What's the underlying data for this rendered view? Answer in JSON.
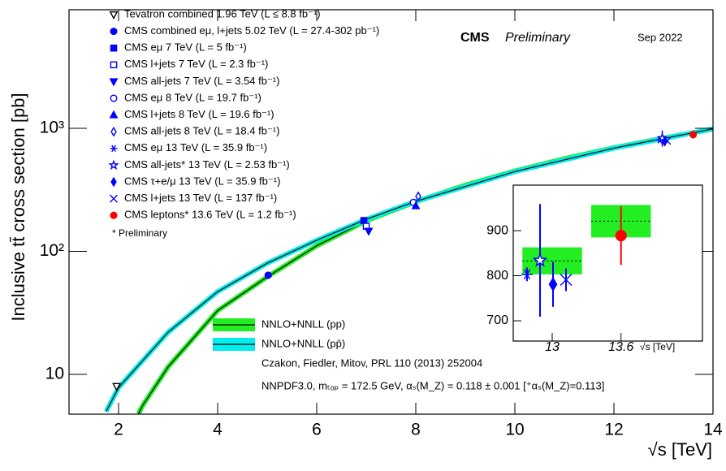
{
  "chart_data": {
    "type": "scatter",
    "experiment": "CMS",
    "status": "Preliminary",
    "date": "Sep 2022",
    "note": "* Preliminary",
    "reference": "Czakon, Fiedler, Mitov, PRL 110 (2013) 252004",
    "settings": "NNPDF3.0, mₜₒₚ = 172.5 GeV, αₛ(M_Z) = 0.118 ± 0.001 [⁺αₛ(M_Z)=0.113]",
    "x_label": "√s [TeV]",
    "y_label": "Inclusive tt̄ cross section [pb]",
    "xlim": [
      1,
      14
    ],
    "xticks": [
      2,
      4,
      6,
      8,
      10,
      12,
      14
    ],
    "ylim": [
      4.75,
      9200
    ],
    "yticks": [
      10,
      {
        "value": 100,
        "label": "10²"
      },
      {
        "value": 1000,
        "label": "10³"
      }
    ],
    "log_y": true,
    "series": [
      {
        "name": "Tevatron combined 1.96 TeV (L ≤ 8.8 fb⁻¹)",
        "color": "#000000",
        "marker": "triangle-down-open",
        "x": [
          1.96
        ],
        "values": [
          8
        ]
      },
      {
        "name": "CMS combined eμ, l+jets 5.02 TeV (L = 27.4-302 pb⁻¹)",
        "color": "#0000ff",
        "marker": "circle",
        "x": [
          5.02
        ],
        "values": [
          64
        ]
      },
      {
        "name": "CMS eμ 7 TeV (L = 5 fb⁻¹)",
        "color": "#0000ff",
        "marker": "square",
        "x": [
          7
        ],
        "values": [
          178
        ]
      },
      {
        "name": "CMS l+jets 7 TeV (L = 2.3 fb⁻¹)",
        "color": "#0000ff",
        "marker": "square-open",
        "x": [
          7
        ],
        "values": [
          160
        ]
      },
      {
        "name": "CMS all-jets 7 TeV (L = 3.54 fb⁻¹)",
        "color": "#0000ff",
        "marker": "triangle-down",
        "x": [
          7
        ],
        "values": [
          146
        ]
      },
      {
        "name": "CMS eμ 8 TeV (L = 19.7 fb⁻¹)",
        "color": "#0000ff",
        "marker": "circle-open",
        "x": [
          8
        ],
        "values": [
          250
        ]
      },
      {
        "name": "CMS l+jets 8 TeV (L = 19.6 fb⁻¹)",
        "color": "#0000ff",
        "marker": "triangle-up",
        "x": [
          8
        ],
        "values": [
          234
        ]
      },
      {
        "name": "CMS all-jets 8 TeV (L = 18.4 fb⁻¹)",
        "color": "#0000ff",
        "marker": "diamond-open",
        "x": [
          8
        ],
        "values": [
          280
        ]
      },
      {
        "name": "CMS eμ 13 TeV (L = 35.9 fb⁻¹)",
        "color": "#0000ff",
        "marker": "asterisk",
        "x": [
          13
        ],
        "values": [
          803
        ],
        "errors": [
          15
        ]
      },
      {
        "name": "CMS all-jets* 13 TeV (L = 2.53 fb⁻¹)",
        "color": "#0000ff",
        "marker": "star-open",
        "x": [
          13
        ],
        "values": [
          834
        ],
        "errors": [
          125
        ]
      },
      {
        "name": "CMS τ+e/μ 13 TeV (L = 35.9 fb⁻¹)",
        "color": "#0000ff",
        "marker": "diamond",
        "x": [
          13
        ],
        "values": [
          781
        ],
        "errors": [
          50
        ]
      },
      {
        "name": "CMS l+jets 13 TeV (L = 137 fb⁻¹)",
        "color": "#0000ff",
        "marker": "cross",
        "x": [
          13
        ],
        "values": [
          791
        ],
        "errors": [
          25
        ]
      },
      {
        "name": "CMS leptons* 13.6 TeV (L = 1.2 fb⁻¹)",
        "color": "#ff0000",
        "marker": "circle",
        "x": [
          13.6
        ],
        "values": [
          889
        ],
        "errors": [
          65
        ]
      }
    ],
    "theory": [
      {
        "name": "NNLO+NNLL (pp)",
        "color": "#22ee22",
        "x": [
          2.4,
          2.5,
          3,
          4,
          5,
          6,
          7,
          8,
          9,
          10,
          11,
          12,
          13,
          13.6,
          14
        ],
        "values": [
          4.8,
          5.7,
          11.5,
          33,
          62,
          111,
          177,
          253,
          345,
          450,
          566,
          695,
          833,
          921,
          985
        ]
      },
      {
        "name": "NNLO+NNLL (pp̄)",
        "color": "#00eeee",
        "x": [
          1.75,
          2,
          3,
          4,
          5,
          6,
          7,
          8,
          10,
          12,
          14
        ],
        "values": [
          5,
          7.8,
          22,
          47,
          80,
          123,
          182,
          255,
          445,
          690,
          990
        ]
      }
    ],
    "inset": {
      "xlim": [
        12.66,
        14.31
      ],
      "xticks": [
        13,
        13.6
      ],
      "x_label": "√s [TeV]",
      "ylim": [
        655,
        1001
      ],
      "yticks": [
        700,
        800,
        900
      ],
      "theory": [
        {
          "x": 13,
          "value": 833,
          "error": 30,
          "color": "#22ee22"
        },
        {
          "x": 13.6,
          "value": 921,
          "error": 36,
          "color": "#22ee22"
        }
      ]
    }
  }
}
